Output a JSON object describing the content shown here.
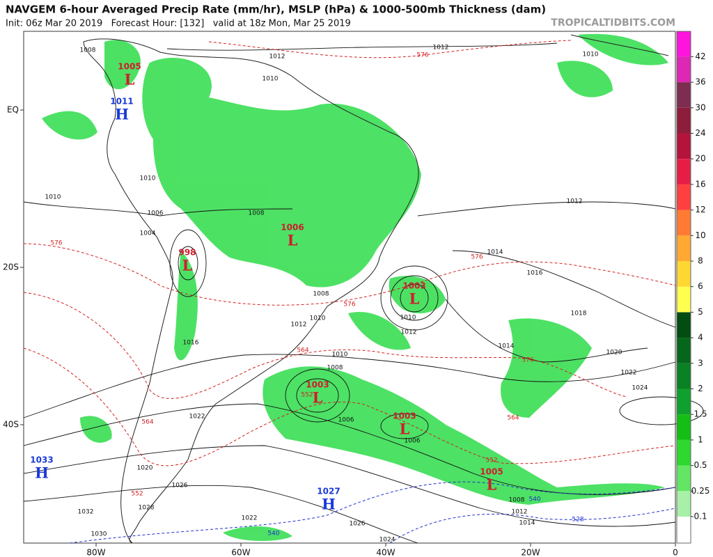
{
  "header": {
    "title": "NAVGEM 6-hour Averaged Precip Rate (mm/hr), MSLP (hPa) & 1000-500mb Thickness (dam)",
    "subtitle": "Init: 06z Mar 20 2019   Forecast Hour: [132]   valid at 18z Mon, Mar 25 2019",
    "watermark": "TROPICALTIDBITS.COM"
  },
  "map": {
    "lon_ticks": [
      {
        "value": -80,
        "label": "80W"
      },
      {
        "value": -60,
        "label": "60W"
      },
      {
        "value": -40,
        "label": "40W"
      },
      {
        "value": -20,
        "label": "20W"
      },
      0
    ],
    "lat_ticks": [
      {
        "value": 0,
        "label": "EQ"
      },
      {
        "value": -20,
        "label": "20S"
      },
      {
        "value": -40,
        "label": "40S"
      }
    ],
    "pressure_centers": [
      {
        "kind": "L",
        "value": 1005
      },
      {
        "kind": "H",
        "value": 1011
      },
      {
        "kind": "L",
        "value": 998
      },
      {
        "kind": "L",
        "value": 1006
      },
      {
        "kind": "L",
        "value": 1003
      },
      {
        "kind": "L",
        "value": 1003
      },
      {
        "kind": "L",
        "value": 1003
      },
      {
        "kind": "L",
        "value": 1005
      },
      {
        "kind": "H",
        "value": 1033
      },
      {
        "kind": "H",
        "value": 1027
      }
    ],
    "isobar_labels": [
      1008,
      1012,
      1012,
      1010,
      1010,
      1010,
      1010,
      1008,
      1006,
      1004,
      1012,
      1014,
      1016,
      1018,
      1008,
      1010,
      1012,
      1010,
      1012,
      1016,
      1014,
      1020,
      1010,
      1008,
      1022,
      1024,
      1006,
      1006,
      1022,
      1020,
      1026,
      1028,
      1032,
      1022,
      1026,
      1024,
      1030,
      1008,
      1012,
      1014
    ],
    "thickness_labels_red": [
      576,
      576,
      576,
      576,
      564,
      576,
      564,
      564,
      552,
      552,
      552
    ],
    "thickness_labels_blue": [
      540,
      528,
      540
    ]
  },
  "colorbar": {
    "ticks": [
      0.1,
      0.25,
      0.5,
      1,
      1.5,
      2,
      3,
      4,
      5,
      6,
      8,
      10,
      12,
      16,
      20,
      24,
      30,
      36,
      42
    ],
    "colors": [
      "#ffffff",
      "#a8f0a8",
      "#64e664",
      "#2ed82e",
      "#14be14",
      "#0fa02d",
      "#0a8224",
      "#06661b",
      "#034d12",
      "#ffff50",
      "#ffd733",
      "#ffa833",
      "#ff7b33",
      "#ff4040",
      "#e61e46",
      "#b4143c",
      "#8c1e3c",
      "#7d2d50",
      "#dc28b4",
      "#ff14dc"
    ]
  }
}
